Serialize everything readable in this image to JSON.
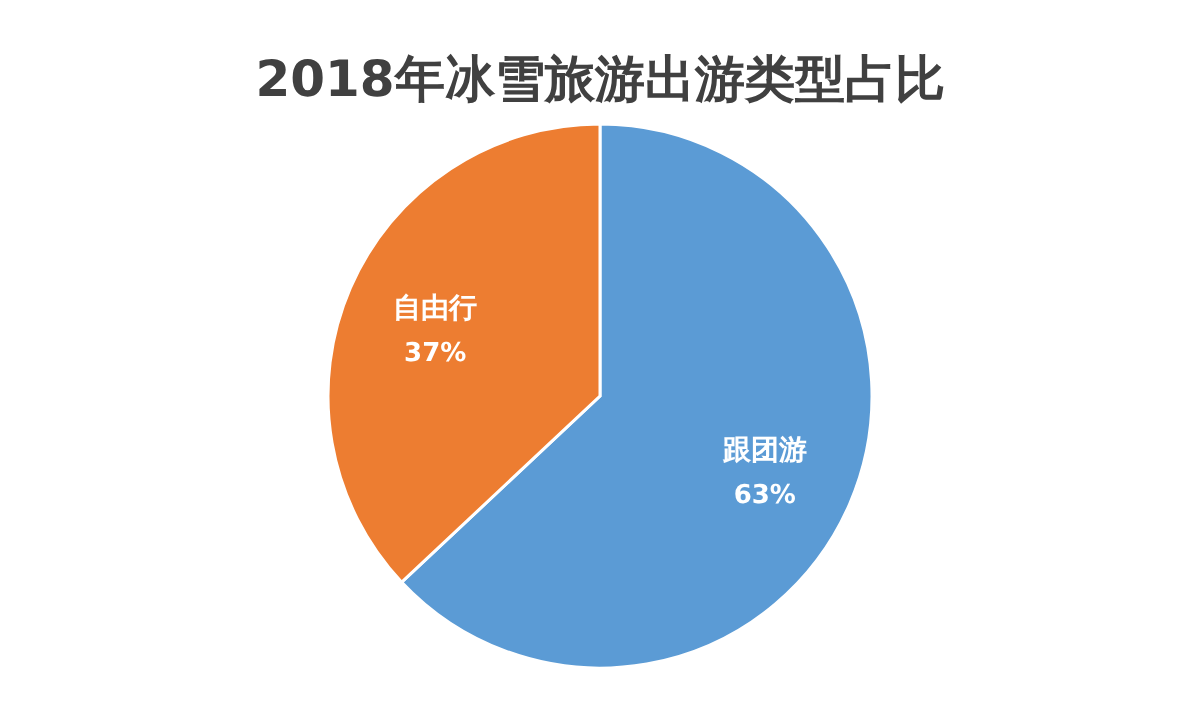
{
  "chart_data": {
    "type": "pie",
    "title": "2018年冰雪旅游出游类型占比",
    "categories": [
      "跟团游",
      "自由行"
    ],
    "values": [
      63,
      37
    ],
    "value_labels": [
      "63%",
      "37%"
    ],
    "colors": [
      "#5b9bd5",
      "#ed7d31"
    ]
  }
}
